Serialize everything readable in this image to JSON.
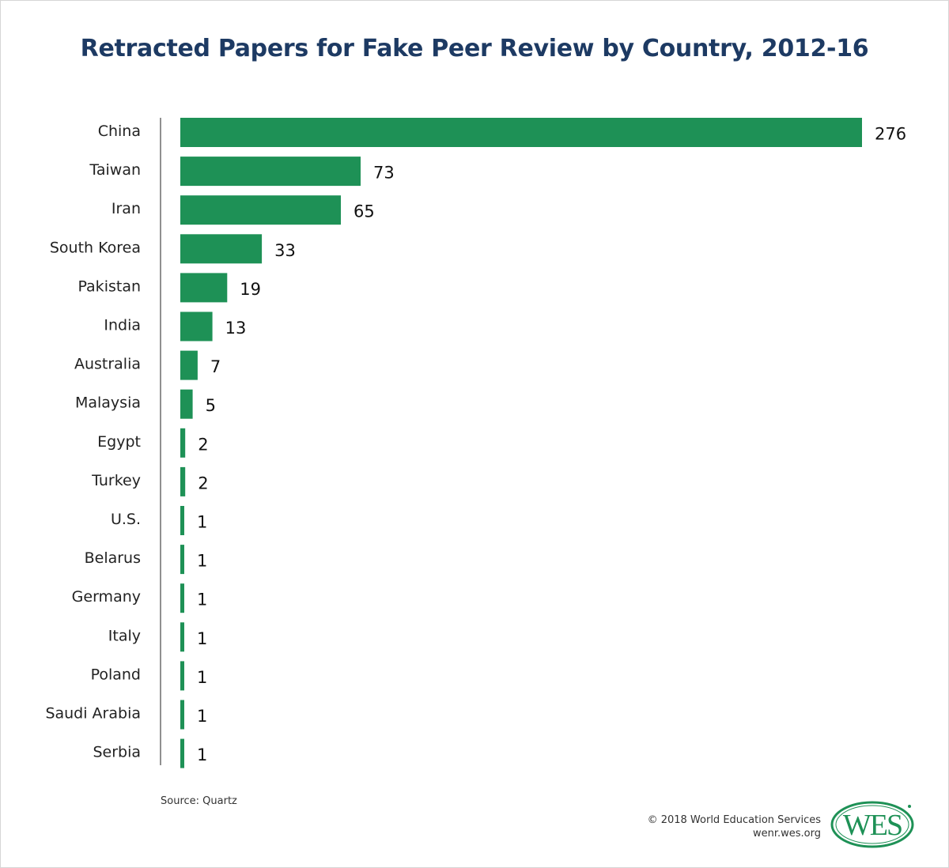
{
  "colors": {
    "bar": "#1e9156",
    "title": "#1d3a63",
    "axis": "#222222",
    "logo": "#1e9156"
  },
  "footer": {
    "source": "Source: Quartz",
    "copyright": "© 2018 World Education Services",
    "website": "wenr.wes.org",
    "logo_text": "WES"
  },
  "chart_data": {
    "type": "bar",
    "orientation": "horizontal",
    "title": "Retracted Papers for Fake Peer Review by Country, 2012-16",
    "xlabel": "",
    "ylabel": "",
    "categories": [
      "China",
      "Taiwan",
      "Iran",
      "South Korea",
      "Pakistan",
      "India",
      "Australia",
      "Malaysia",
      "Egypt",
      "Turkey",
      "U.S.",
      "Belarus",
      "Germany",
      "Italy",
      "Poland",
      "Saudi Arabia",
      "Serbia"
    ],
    "values": [
      276,
      73,
      65,
      33,
      19,
      13,
      7,
      5,
      2,
      2,
      1,
      1,
      1,
      1,
      1,
      1,
      1
    ],
    "xlim": [
      0,
      276
    ],
    "grid": false,
    "legend": "none",
    "data_labels": true
  }
}
